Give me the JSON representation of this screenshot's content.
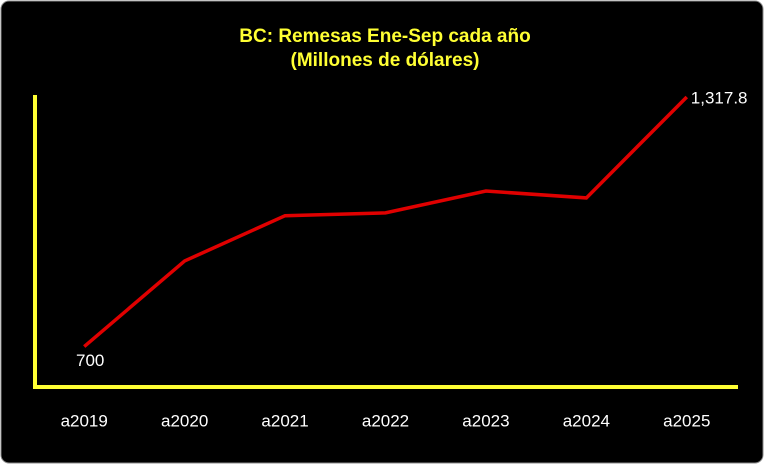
{
  "chart_data": {
    "type": "line",
    "title": "BC: Remesas Ene-Sep cada año",
    "subtitle": "(Millones de dólares)",
    "categories": [
      "a2019",
      "a2020",
      "a2021",
      "a2022",
      "a2023",
      "a2024",
      "a2025"
    ],
    "series": [
      {
        "name": "Remesas",
        "color": "#e00000",
        "values": [
          700,
          912,
          1024,
          1031,
          1085,
          1068,
          1317.8
        ],
        "value_labels": [
          "700",
          null,
          null,
          null,
          null,
          null,
          "1,317.8"
        ]
      }
    ],
    "ylim": [
      600,
      1317.8
    ],
    "axis_color": "#ffff33",
    "title_color": "#ffff33"
  }
}
